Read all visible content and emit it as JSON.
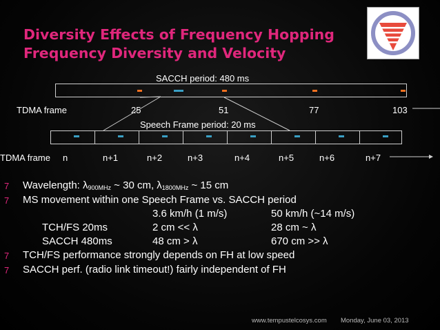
{
  "title": {
    "line1": "Diversity Effects of Frequency Hopping",
    "line2": "Frequency Diversity and Velocity"
  },
  "colors": {
    "accent": "#e0277c",
    "orange": "#f07020",
    "blue": "#3a9fc4"
  },
  "diagram": {
    "sacch_label": "SACCH period: 480 ms",
    "tdma_top_label": "TDMA frame",
    "top_numbers": [
      "25",
      "51",
      "77",
      "103"
    ],
    "speech_label": "Speech Frame period: 20 ms",
    "tdma_bottom_label": "TDMA frame",
    "bottom_numbers": [
      "n",
      "n+1",
      "n+2",
      "n+3",
      "n+4",
      "n+5",
      "n+6",
      "n+7"
    ]
  },
  "bullets": {
    "b1_prefix": "Wavelength: ",
    "lambda": "λ",
    "b1_sub1": "900MHz",
    "b1_mid": " ~ 30 cm, ",
    "b1_sub2": "1800MHz",
    "b1_suffix": " ~ 15 cm",
    "b2": "MS movement within one Speech Frame vs. SACCH period",
    "col1_head": "3.6 km/h (1 m/s)",
    "col2_head": "50 km/h (~14 m/s)",
    "row1_label": "TCH/FS 20ms",
    "row1_c1": "2 cm << λ",
    "row1_c2": "28 cm ~ λ",
    "row2_label": "SACCH 480ms",
    "row2_c1": "48 cm > λ",
    "row2_c2": "670 cm >> λ",
    "b3": "TCH/FS performance strongly depends on FH at low speed",
    "b4": "SACCH perf. (radio link timeout!) fairly independent of FH",
    "glyph": "7"
  },
  "footer": {
    "site": "www.tempustelcosys.com",
    "date": "Monday, June 03, 2013"
  }
}
